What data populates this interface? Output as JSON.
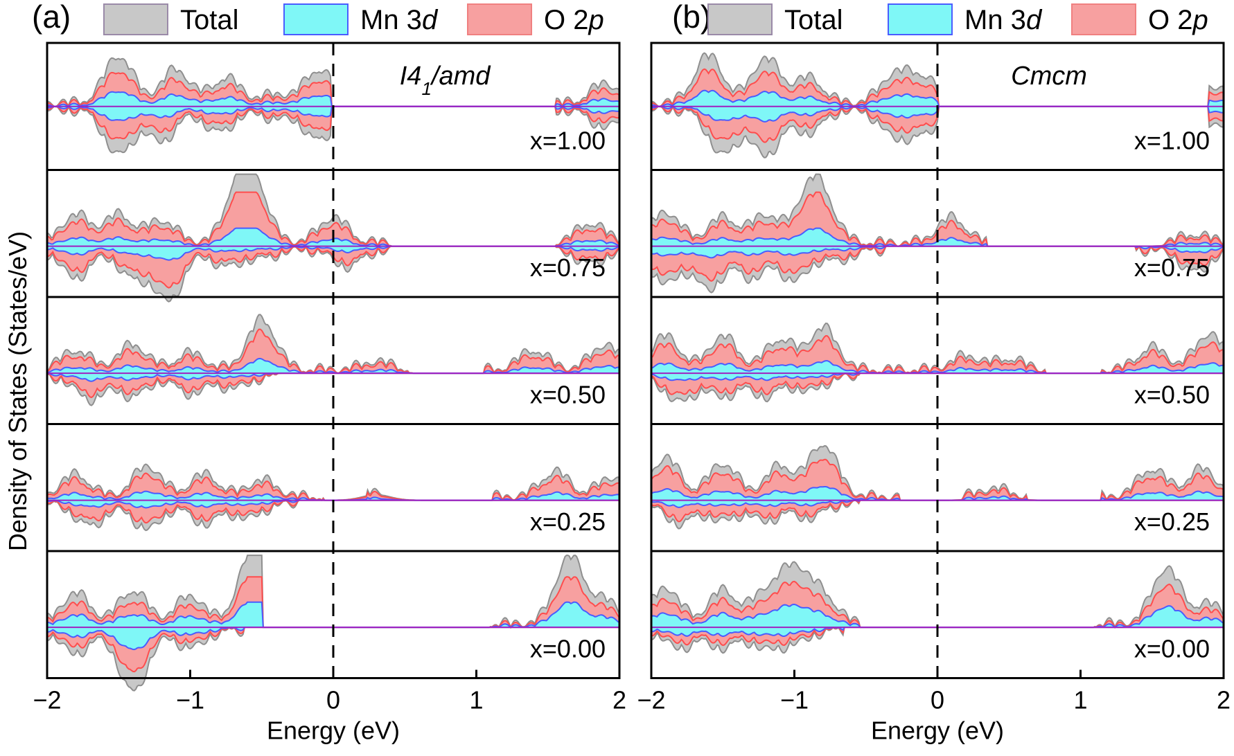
{
  "figure": {
    "ylabel": "Density of States (States/eV)",
    "legend": [
      {
        "name": "Total",
        "fill": "#c8c8c8",
        "stroke": "#9a8aa8"
      },
      {
        "name": "Mn 3",
        "italic": "d",
        "fill": "#7ff7f7",
        "stroke": "#4a5cff"
      },
      {
        "name": "O 2",
        "italic": "p",
        "fill": "#f7a0a0",
        "stroke": "#f08080"
      }
    ],
    "colors": {
      "total_fill": "#c8c8c8",
      "total_stroke": "#8f8f8f",
      "mn_fill": "#7ff7f7",
      "mn_stroke": "#4a5cff",
      "o_fill": "#f7a0a0",
      "o_stroke": "#ff4d4d",
      "zero_line": "#a020c0"
    }
  },
  "chart_data": [
    {
      "type": "area",
      "panel_label": "(a)",
      "phase": {
        "main": "I4",
        "sub": "1",
        "tail": "/amd"
      },
      "xlabel": "Energy (eV)",
      "xlim": [
        -2,
        2
      ],
      "xticks": [
        -2,
        -1,
        0,
        1,
        2
      ],
      "xtick_labels": [
        "−2",
        "−1",
        "0",
        "1",
        "2"
      ],
      "fermi_level": 0,
      "subplots": [
        {
          "label": "x=1.00",
          "gap": [
            -0.02,
            1.55
          ],
          "up_peaks": [
            [
              -1.5,
              0.85
            ],
            [
              -1.1,
              0.6
            ],
            [
              -0.75,
              0.45
            ],
            [
              -0.4,
              0.15
            ],
            [
              -0.1,
              0.6
            ],
            [
              1.9,
              0.35
            ]
          ],
          "down_peaks": [
            [
              -1.5,
              0.8
            ],
            [
              -1.2,
              0.55
            ],
            [
              -0.8,
              0.4
            ],
            [
              -0.4,
              0.15
            ],
            [
              -0.1,
              0.55
            ],
            [
              1.9,
              0.3
            ]
          ],
          "o_ratio": 0.7,
          "mn_ratio": 0.3
        },
        {
          "label": "x=0.75",
          "gap": [
            0.4,
            1.55
          ],
          "up_peaks": [
            [
              -1.8,
              0.5
            ],
            [
              -1.5,
              0.5
            ],
            [
              -1.2,
              0.4
            ],
            [
              -0.65,
              1.0
            ],
            [
              -0.55,
              0.8
            ],
            [
              0.0,
              0.45
            ],
            [
              1.8,
              0.35
            ]
          ],
          "down_peaks": [
            [
              -1.8,
              0.5
            ],
            [
              -1.4,
              0.5
            ],
            [
              -1.15,
              0.9
            ],
            [
              -0.75,
              0.3
            ],
            [
              -0.5,
              0.15
            ],
            [
              0.1,
              0.3
            ],
            [
              1.8,
              0.25
            ]
          ],
          "o_ratio": 0.75,
          "mn_ratio": 0.25
        },
        {
          "label": "x=0.50",
          "gap": [
            0.55,
            1.05
          ],
          "up_peaks": [
            [
              -1.8,
              0.35
            ],
            [
              -1.4,
              0.45
            ],
            [
              -1.0,
              0.3
            ],
            [
              -0.5,
              0.9
            ],
            [
              0.3,
              0.15
            ],
            [
              1.4,
              0.35
            ],
            [
              1.9,
              0.45
            ]
          ],
          "down_peaks": [
            [
              -1.7,
              0.4
            ],
            [
              -1.4,
              0.35
            ],
            [
              -1.0,
              0.3
            ],
            [
              -0.7,
              0.2
            ]
          ],
          "o_ratio": 0.75,
          "mn_ratio": 0.25
        },
        {
          "label": "x=0.25",
          "gap": [
            0.75,
            1.05
          ],
          "up_peaks": [
            [
              -1.8,
              0.4
            ],
            [
              -1.3,
              0.55
            ],
            [
              -0.9,
              0.4
            ],
            [
              -0.5,
              0.3
            ],
            [
              0.3,
              0.1
            ],
            [
              1.55,
              0.45
            ],
            [
              1.95,
              0.35
            ]
          ],
          "down_peaks": [
            [
              -1.7,
              0.4
            ],
            [
              -1.3,
              0.45
            ],
            [
              -0.9,
              0.35
            ],
            [
              -0.6,
              0.25
            ]
          ],
          "o_ratio": 0.75,
          "mn_ratio": 0.25
        },
        {
          "label": "x=0.00",
          "gap": [
            -0.5,
            1.1
          ],
          "up_peaks": [
            [
              -1.8,
              0.55
            ],
            [
              -1.4,
              0.6
            ],
            [
              -1.0,
              0.5
            ],
            [
              -0.6,
              0.6
            ],
            [
              -0.5,
              1.1
            ],
            [
              1.65,
              1.2
            ],
            [
              1.9,
              0.4
            ]
          ],
          "down_peaks": [
            [
              -1.8,
              0.4
            ],
            [
              -1.4,
              1.1
            ],
            [
              -1.0,
              0.3
            ]
          ],
          "o_ratio": 0.7,
          "mn_ratio": 0.35
        }
      ]
    },
    {
      "type": "area",
      "panel_label": "(b)",
      "phase": {
        "main": "Cmcm",
        "sub": "",
        "tail": ""
      },
      "xlabel": "Energy (eV)",
      "xlim": [
        -2,
        2
      ],
      "xticks": [
        -2,
        -1,
        0,
        1,
        2
      ],
      "xtick_labels": [
        "−2",
        "−1",
        "0",
        "1",
        "2"
      ],
      "fermi_level": 0,
      "subplots": [
        {
          "label": "x=1.00",
          "gap": [
            0.0,
            1.9
          ],
          "up_peaks": [
            [
              -1.6,
              0.85
            ],
            [
              -1.2,
              0.8
            ],
            [
              -0.9,
              0.45
            ],
            [
              -0.3,
              0.5
            ],
            [
              -0.1,
              0.45
            ],
            [
              1.95,
              0.3
            ]
          ],
          "down_peaks": [
            [
              -1.5,
              0.8
            ],
            [
              -1.2,
              0.8
            ],
            [
              -0.9,
              0.4
            ],
            [
              -0.3,
              0.45
            ],
            [
              -0.1,
              0.4
            ],
            [
              1.95,
              0.3
            ]
          ],
          "o_ratio": 0.7,
          "mn_ratio": 0.3
        },
        {
          "label": "x=0.75",
          "gap": [
            0.35,
            1.3
          ],
          "up_peaks": [
            [
              -1.9,
              0.55
            ],
            [
              -1.5,
              0.45
            ],
            [
              -1.2,
              0.5
            ],
            [
              -0.9,
              0.75
            ],
            [
              -0.8,
              0.6
            ],
            [
              0.1,
              0.45
            ],
            [
              1.8,
              0.15
            ]
          ],
          "down_peaks": [
            [
              -1.9,
              0.6
            ],
            [
              -1.6,
              0.7
            ],
            [
              -1.3,
              0.5
            ],
            [
              -1.0,
              0.55
            ],
            [
              -0.7,
              0.2
            ],
            [
              1.8,
              0.4
            ]
          ],
          "o_ratio": 0.75,
          "mn_ratio": 0.25
        },
        {
          "label": "x=0.50",
          "gap": [
            0.75,
            1.15
          ],
          "up_peaks": [
            [
              -1.9,
              0.6
            ],
            [
              -1.5,
              0.6
            ],
            [
              -1.1,
              0.55
            ],
            [
              -0.8,
              0.75
            ],
            [
              0.2,
              0.25
            ],
            [
              0.5,
              0.2
            ],
            [
              1.5,
              0.4
            ],
            [
              1.9,
              0.65
            ]
          ],
          "down_peaks": [
            [
              -1.8,
              0.45
            ],
            [
              -1.5,
              0.35
            ],
            [
              -1.2,
              0.35
            ],
            [
              -0.9,
              0.25
            ]
          ],
          "o_ratio": 0.75,
          "mn_ratio": 0.25
        },
        {
          "label": "x=0.25",
          "gap": [
            0.85,
            1.15
          ],
          "up_peaks": [
            [
              -1.9,
              0.7
            ],
            [
              -1.5,
              0.6
            ],
            [
              -1.1,
              0.55
            ],
            [
              -0.8,
              0.95
            ],
            [
              0.4,
              0.15
            ],
            [
              1.5,
              0.5
            ],
            [
              1.85,
              0.5
            ]
          ],
          "down_peaks": [
            [
              -1.8,
              0.35
            ],
            [
              -1.5,
              0.3
            ],
            [
              -1.2,
              0.3
            ],
            [
              -0.9,
              0.25
            ]
          ],
          "o_ratio": 0.75,
          "mn_ratio": 0.25
        },
        {
          "label": "x=0.00",
          "gap": [
            -0.55,
            1.1
          ],
          "up_peaks": [
            [
              -1.9,
              0.65
            ],
            [
              -1.5,
              0.6
            ],
            [
              -1.2,
              0.55
            ],
            [
              -1.0,
              0.95
            ],
            [
              -0.8,
              0.5
            ],
            [
              1.6,
              1.0
            ],
            [
              1.9,
              0.35
            ]
          ],
          "down_peaks": [
            [
              -1.8,
              0.3
            ],
            [
              -1.5,
              0.3
            ],
            [
              -1.2,
              0.3
            ],
            [
              -1.0,
              0.2
            ]
          ],
          "o_ratio": 0.7,
          "mn_ratio": 0.35
        }
      ]
    }
  ]
}
